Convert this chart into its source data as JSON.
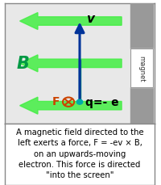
{
  "fig_width": 2.0,
  "fig_height": 2.3,
  "dpi": 100,
  "bg_color": "#ffffff",
  "diagram_bg": "#e8e8e8",
  "title_text": "A magnetic field directed to the\nleft exerts a force, F = -ev × B,\non an upwards-moving\nelectron. This force is directed\n\"into the screen\"",
  "B_label": "B",
  "v_label": "v",
  "q_label": "q=- e",
  "F_label": "F",
  "arrow_green": "#44ee44",
  "blue_arrow": "#003399",
  "teal_arrow": "#008877",
  "green_label": "#009944",
  "orange_label": "#cc4400",
  "magnet_gray": "#999999",
  "magnet_white": "#ffffff",
  "electron_teal": "#00aaaa",
  "cross_orange": "#cc4400",
  "border_color": "#888888",
  "text_color": "#000000"
}
